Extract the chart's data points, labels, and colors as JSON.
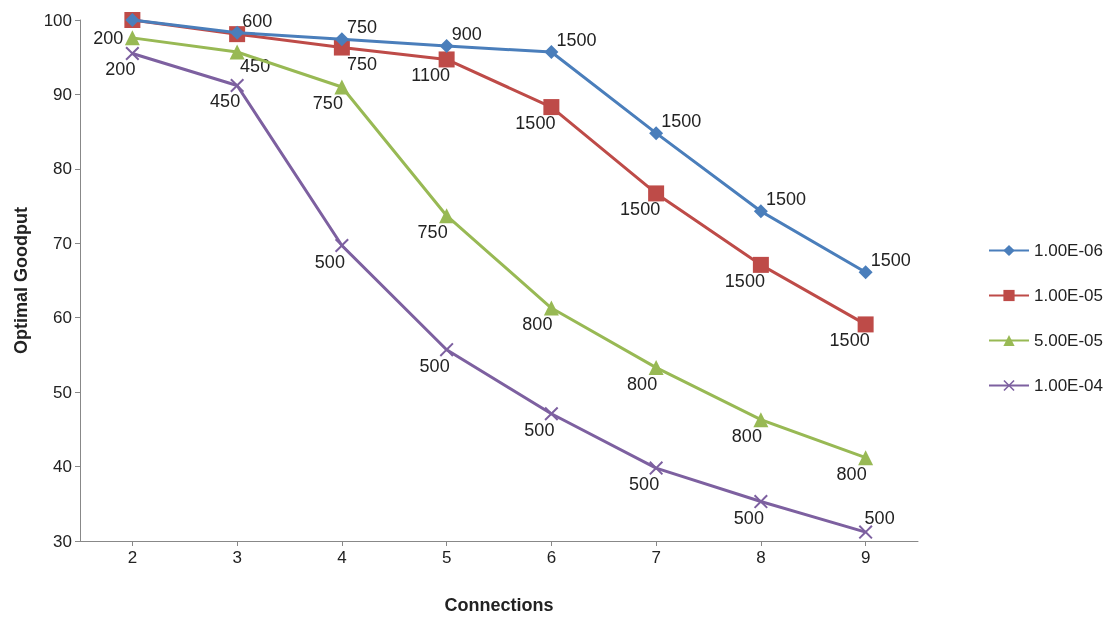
{
  "chart_data": {
    "type": "line",
    "xlabel": "Connections",
    "ylabel": "Optimal Goodput",
    "categories": [
      "2",
      "3",
      "4",
      "5",
      "6",
      "7",
      "8",
      "9"
    ],
    "ylim": [
      30,
      100
    ],
    "yticks": [
      30,
      40,
      50,
      60,
      70,
      80,
      90,
      100
    ],
    "grid": false,
    "legend": "right",
    "series": [
      {
        "name": "1.00E-06",
        "color": "#4a7ebb",
        "marker": "diamond",
        "values": [
          100,
          98.3,
          97.4,
          96.5,
          95.7,
          84.8,
          74.3,
          66.1
        ]
      },
      {
        "name": "1.00E-05",
        "color": "#be4b48",
        "marker": "square",
        "values": [
          100,
          98.1,
          96.3,
          94.7,
          88.3,
          76.7,
          67.1,
          59.1
        ]
      },
      {
        "name": "5.00E-05",
        "color": "#98b954",
        "marker": "triangle",
        "values": [
          97.6,
          95.7,
          91,
          73.7,
          61.3,
          53.3,
          46.3,
          41.2
        ]
      },
      {
        "name": "1.00E-04",
        "color": "#7d60a0",
        "marker": "cross",
        "values": [
          95.5,
          91.2,
          69.7,
          55.7,
          47.1,
          39.8,
          35.3,
          31.2
        ]
      }
    ],
    "annotations": [
      {
        "text": "600",
        "x": "3",
        "y": 98.3
      },
      {
        "text": "750",
        "x": "4",
        "y": 97.4
      },
      {
        "text": "900",
        "x": "5",
        "y": 96.5
      },
      {
        "text": "1500",
        "x": "6",
        "y": 95.7
      },
      {
        "text": "1500",
        "x": "7",
        "y": 84.8
      },
      {
        "text": "1500",
        "x": "8",
        "y": 74.3
      },
      {
        "text": "1500",
        "x": "9",
        "y": 66.1
      },
      {
        "text": "750",
        "x": "4",
        "y": 96.3
      },
      {
        "text": "1100",
        "x": "5",
        "y": 94.7
      },
      {
        "text": "1500",
        "x": "6",
        "y": 88.3
      },
      {
        "text": "1500",
        "x": "7",
        "y": 76.7
      },
      {
        "text": "1500",
        "x": "8",
        "y": 67.1
      },
      {
        "text": "1500",
        "x": "9",
        "y": 59.1
      },
      {
        "text": "200",
        "x": "2",
        "y": 97.6
      },
      {
        "text": "450",
        "x": "3",
        "y": 95.7
      },
      {
        "text": "750",
        "x": "4",
        "y": 91
      },
      {
        "text": "750",
        "x": "5",
        "y": 73.7
      },
      {
        "text": "800",
        "x": "6",
        "y": 61.3
      },
      {
        "text": "800",
        "x": "7",
        "y": 53.3
      },
      {
        "text": "800",
        "x": "8",
        "y": 46.3
      },
      {
        "text": "800",
        "x": "9",
        "y": 41.2
      },
      {
        "text": "200",
        "x": "2",
        "y": 95.5
      },
      {
        "text": "450",
        "x": "3",
        "y": 91.2
      },
      {
        "text": "500",
        "x": "4",
        "y": 69.7
      },
      {
        "text": "500",
        "x": "5",
        "y": 55.7
      },
      {
        "text": "500",
        "x": "6",
        "y": 47.1
      },
      {
        "text": "500",
        "x": "7",
        "y": 39.8
      },
      {
        "text": "500",
        "x": "8",
        "y": 35.3
      },
      {
        "text": "500",
        "x": "9",
        "y": 31.2
      }
    ]
  }
}
